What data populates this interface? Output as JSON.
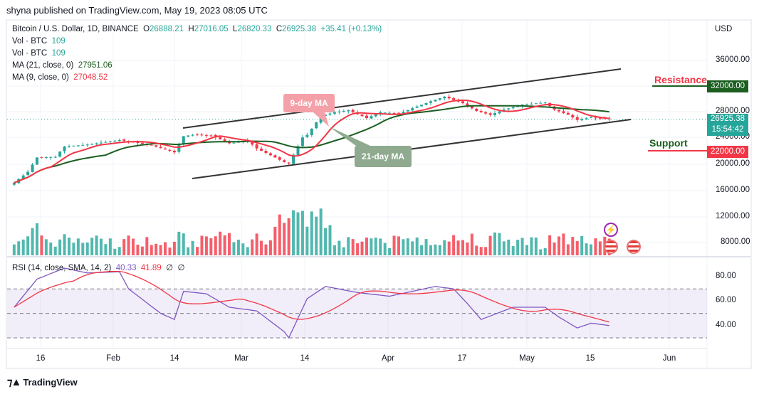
{
  "header": {
    "published": "shyna published on TradingView.com, May 19, 2023 08:05 UTC"
  },
  "legend": {
    "symbol": "Bitcoin / U.S. Dollar, 1D, BINANCE",
    "o_label": "O",
    "o": "26888.21",
    "h_label": "H",
    "h": "27016.05",
    "l_label": "L",
    "l": "26820.33",
    "c_label": "C",
    "c": "26925.38",
    "change": "+35.41 (+0.13%)",
    "vol1_label": "Vol · BTC",
    "vol1": "109",
    "vol2_label": "Vol · BTC",
    "vol2": "109",
    "ma21_label": "MA (21, close, 0)",
    "ma21": "27951.06",
    "ma9_label": "MA (9, close, 0)",
    "ma9": "27048.52",
    "rsi_label": "RSI (14, close, SMA, 14, 2)",
    "rsi": "40.33",
    "rsi_sma": "41.89",
    "rsi_x1": "∅",
    "rsi_x2": "∅"
  },
  "price_axis": {
    "currency": "USD",
    "labels": [
      "36000.00",
      "28000.00",
      "24000.00",
      "20000.00",
      "16000.00",
      "12000.00",
      "8000.00"
    ],
    "resistance_tag": "32000.00",
    "support_tag": "22000.00",
    "last_price": "26925.38",
    "countdown": "15:54:42"
  },
  "rsi_axis": {
    "labels": [
      "80.00",
      "60.00",
      "40.00"
    ]
  },
  "time_axis": {
    "labels": [
      "16",
      "Feb",
      "14",
      "Mar",
      "14",
      "Apr",
      "17",
      "May",
      "15",
      "Jun"
    ]
  },
  "annotations": {
    "resistance": "Resistance",
    "support": "Support",
    "ma9": "9-day MA",
    "ma21": "21-day MA"
  },
  "colors": {
    "up": "#26a69a",
    "down": "#f23645",
    "ma9": "#f23645",
    "ma21": "#1b5e20",
    "rsi": "#7e57c2",
    "rsi_sma": "#f23645"
  },
  "footer": {
    "brand": "TradingView"
  },
  "chart_data": {
    "type": "candlestick",
    "x_start": "2023-01-09",
    "x_end": "2023-05-19",
    "close_keypoints": [
      [
        "01-09",
        17100
      ],
      [
        "01-12",
        18800
      ],
      [
        "01-14",
        21000
      ],
      [
        "01-18",
        21100
      ],
      [
        "01-20",
        22700
      ],
      [
        "01-25",
        23000
      ],
      [
        "02-01",
        23700
      ],
      [
        "02-08",
        22900
      ],
      [
        "02-13",
        21800
      ],
      [
        "02-15",
        24300
      ],
      [
        "02-17",
        24500
      ],
      [
        "02-21",
        24400
      ],
      [
        "02-25",
        23200
      ],
      [
        "03-01",
        23600
      ],
      [
        "03-03",
        22400
      ],
      [
        "03-09",
        20300
      ],
      [
        "03-10",
        20100
      ],
      [
        "03-13",
        24100
      ],
      [
        "03-14",
        24500
      ],
      [
        "03-17",
        27400
      ],
      [
        "03-20",
        28000
      ],
      [
        "03-23",
        28300
      ],
      [
        "03-27",
        27100
      ],
      [
        "03-30",
        28000
      ],
      [
        "04-03",
        27800
      ],
      [
        "04-10",
        29700
      ],
      [
        "04-13",
        30400
      ],
      [
        "04-17",
        29400
      ],
      [
        "04-20",
        28200
      ],
      [
        "04-23",
        27600
      ],
      [
        "04-26",
        28400
      ],
      [
        "04-30",
        29200
      ],
      [
        "05-05",
        29500
      ],
      [
        "05-07",
        28400
      ],
      [
        "05-10",
        27600
      ],
      [
        "05-12",
        26800
      ],
      [
        "05-15",
        27200
      ],
      [
        "05-19",
        26925
      ]
    ],
    "rsi_keypoints": [
      [
        "01-09",
        55
      ],
      [
        "01-14",
        78
      ],
      [
        "01-20",
        87
      ],
      [
        "01-25",
        83
      ],
      [
        "02-01",
        84
      ],
      [
        "02-03",
        70
      ],
      [
        "02-10",
        50
      ],
      [
        "02-13",
        45
      ],
      [
        "02-15",
        68
      ],
      [
        "02-20",
        66
      ],
      [
        "02-25",
        55
      ],
      [
        "03-03",
        52
      ],
      [
        "03-09",
        35
      ],
      [
        "03-10",
        30
      ],
      [
        "03-14",
        62
      ],
      [
        "03-18",
        72
      ],
      [
        "03-25",
        67
      ],
      [
        "04-01",
        64
      ],
      [
        "04-11",
        72
      ],
      [
        "04-15",
        70
      ],
      [
        "04-18",
        58
      ],
      [
        "04-21",
        45
      ],
      [
        "04-28",
        55
      ],
      [
        "05-05",
        55
      ],
      [
        "05-08",
        47
      ],
      [
        "05-12",
        38
      ],
      [
        "05-15",
        42
      ],
      [
        "05-19",
        40
      ]
    ],
    "rsi_bands": [
      30,
      70
    ],
    "rsi_mid": 50
  }
}
